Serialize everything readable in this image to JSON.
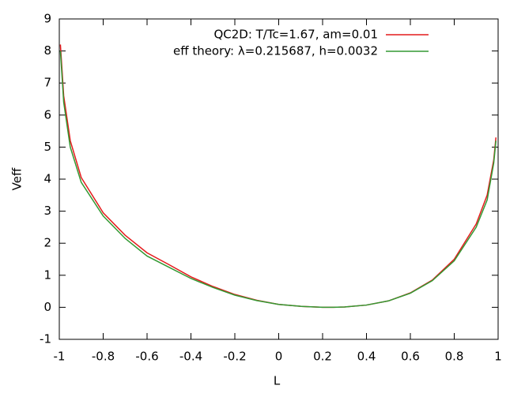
{
  "chart_data": {
    "type": "line",
    "xlabel": "L",
    "ylabel": "Veff",
    "xlim": [
      -1,
      1
    ],
    "ylim": [
      -1,
      9
    ],
    "xticks": [
      -1,
      -0.8,
      -0.6,
      -0.4,
      -0.2,
      0,
      0.2,
      0.4,
      0.6,
      0.8,
      1
    ],
    "yticks": [
      -1,
      0,
      1,
      2,
      3,
      4,
      5,
      6,
      7,
      8,
      9
    ],
    "legend": "top-right",
    "x": [
      -0.995,
      -0.98,
      -0.95,
      -0.9,
      -0.8,
      -0.7,
      -0.6,
      -0.5,
      -0.4,
      -0.3,
      -0.2,
      -0.1,
      0,
      0.1,
      0.2,
      0.25,
      0.3,
      0.4,
      0.5,
      0.6,
      0.7,
      0.8,
      0.9,
      0.95,
      0.98,
      0.99
    ],
    "series": [
      {
        "name": "QC2D: T/Tc=1.67, am=0.01",
        "color": "#e41a1c",
        "values": [
          8.2,
          6.6,
          5.2,
          4.05,
          2.95,
          2.25,
          1.7,
          1.33,
          0.95,
          0.65,
          0.4,
          0.22,
          0.09,
          0.03,
          0.0,
          0.0,
          0.01,
          0.07,
          0.2,
          0.45,
          0.85,
          1.5,
          2.6,
          3.5,
          4.6,
          5.3
        ]
      },
      {
        "name": "eff theory: λ=0.215687, h=0.0032",
        "color": "#339933",
        "values": [
          8.0,
          6.4,
          5.0,
          3.9,
          2.85,
          2.15,
          1.6,
          1.25,
          0.9,
          0.62,
          0.38,
          0.21,
          0.09,
          0.03,
          0.0,
          0.0,
          0.01,
          0.07,
          0.2,
          0.44,
          0.83,
          1.45,
          2.5,
          3.35,
          4.5,
          5.2
        ]
      }
    ]
  }
}
